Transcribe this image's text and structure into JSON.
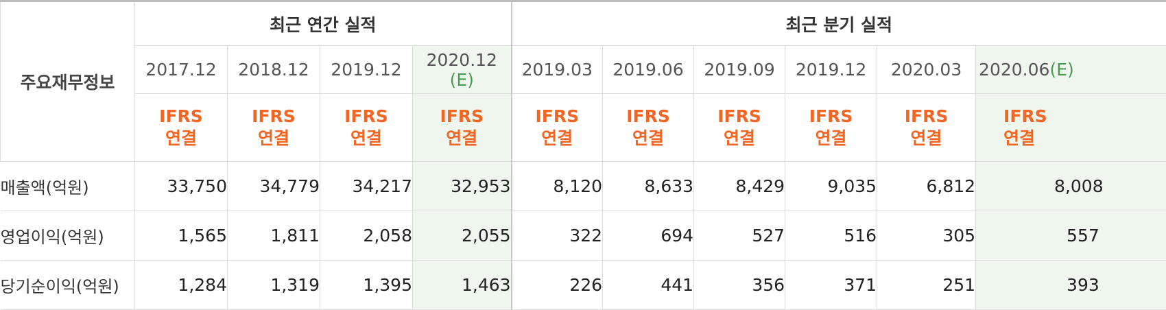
{
  "table": {
    "corner_label": "주요재무정보",
    "annual_header": "최근 연간 실적",
    "quarterly_header": "최근 분기 실적",
    "annual_periods": [
      {
        "date": "2017.12",
        "suffix": ""
      },
      {
        "date": "2018.12",
        "suffix": ""
      },
      {
        "date": "2019.12",
        "suffix": ""
      },
      {
        "date": "2020.12",
        "suffix": "(E)"
      }
    ],
    "quarterly_periods": [
      {
        "date": "2019.03",
        "suffix": ""
      },
      {
        "date": "2019.06",
        "suffix": ""
      },
      {
        "date": "2019.09",
        "suffix": ""
      },
      {
        "date": "2019.12",
        "suffix": ""
      },
      {
        "date": "2020.03",
        "suffix": ""
      },
      {
        "date": "2020.06",
        "suffix": "(E)"
      }
    ],
    "standard_line1": "IFRS",
    "standard_line2": "연결",
    "rows": [
      {
        "label": "매출액(억원)",
        "annual": [
          "33,750",
          "34,779",
          "34,217",
          "32,953"
        ],
        "quarterly": [
          "8,120",
          "8,633",
          "8,429",
          "9,035",
          "6,812",
          "8,008"
        ]
      },
      {
        "label": "영업이익(억원)",
        "annual": [
          "1,565",
          "1,811",
          "2,058",
          "2,055"
        ],
        "quarterly": [
          "322",
          "694",
          "527",
          "516",
          "305",
          "557"
        ]
      },
      {
        "label": "당기순이익(억원)",
        "annual": [
          "1,284",
          "1,319",
          "1,395",
          "1,463"
        ],
        "quarterly": [
          "226",
          "441",
          "356",
          "371",
          "251",
          "393"
        ]
      }
    ]
  }
}
